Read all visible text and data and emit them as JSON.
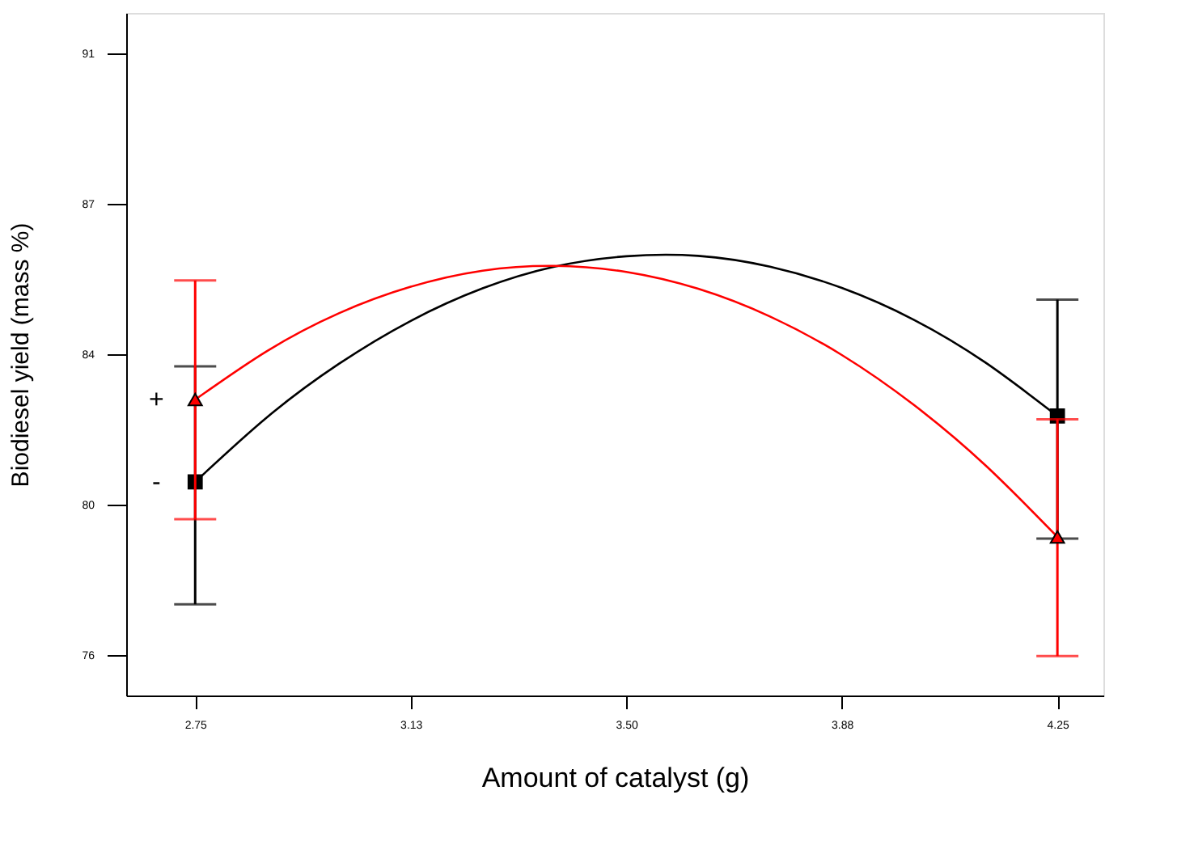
{
  "chart_data": {
    "type": "line",
    "xlabel": "Amount of catalyst (g)",
    "ylabel": "Biodiesel yield (mass %)",
    "xlim": [
      2.63,
      4.33
    ],
    "ylim": [
      75,
      92
    ],
    "xticks": [
      2.75,
      {
        "value": 3.125,
        "label": "3.13"
      },
      {
        "value": 3.5,
        "label": "3.50"
      },
      {
        "value": 3.875,
        "label": "3.88"
      },
      4.25
    ],
    "yticks": [
      76,
      {
        "value": 79.75,
        "label": "80"
      },
      {
        "value": 83.5,
        "label": "84"
      },
      {
        "value": 87.25,
        "label": "87"
      },
      91
    ],
    "grid": false,
    "series": [
      {
        "color": "#000000",
        "marker": "none",
        "x": [
          2.75,
          2.875,
          3.0,
          3.125,
          3.25,
          3.375,
          3.5,
          3.625,
          3.75,
          3.875,
          4.0,
          4.125,
          4.25
        ],
        "values": [
          80.32,
          81.93,
          83.26,
          84.33,
          85.14,
          85.68,
          85.94,
          85.95,
          85.68,
          85.15,
          84.36,
          83.29,
          81.96
        ]
      },
      {
        "color": "#ff0000",
        "marker": "none",
        "x": [
          2.75,
          2.875,
          3.0,
          3.125,
          3.25,
          3.375,
          3.5,
          3.625,
          3.75,
          3.875,
          4.0,
          4.125,
          4.25
        ],
        "values": [
          82.37,
          83.58,
          84.52,
          85.18,
          85.58,
          85.7,
          85.55,
          85.13,
          84.44,
          83.48,
          82.24,
          80.73,
          78.95
        ]
      },
      {
        "type": "scatter",
        "color": "#000000",
        "marker": "square",
        "x": [
          2.75,
          4.25
        ],
        "values": [
          80.32,
          81.96
        ],
        "errors": [
          [
            77.27,
            83.2
          ],
          [
            78.91,
            84.86
          ]
        ]
      },
      {
        "type": "scatter",
        "color": "#ff0000",
        "marker": "triangle",
        "x": [
          2.75,
          4.25
        ],
        "values": [
          82.37,
          78.95
        ],
        "errors": [
          [
            79.39,
            85.34
          ],
          [
            75.98,
            81.88
          ]
        ]
      }
    ],
    "annotations": [
      {
        "text": "+",
        "x": 2.75,
        "y": 82.37
      },
      {
        "text": "-",
        "x": 2.75,
        "y": 80.32
      }
    ]
  }
}
